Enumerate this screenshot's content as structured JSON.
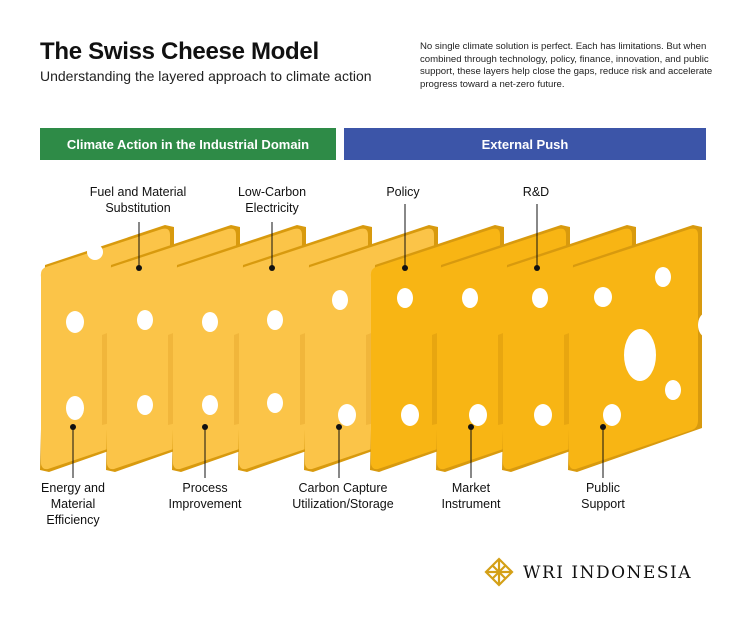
{
  "title": "The Swiss Cheese Model",
  "subtitle": "Understanding the layered approach to climate action",
  "intro": "No single climate solution is perfect. Each has limitations. But when combined through technology, policy, finance, innovation, and public support, these layers help close the gaps, reduce risk and accelerate progress toward a net-zero future.",
  "bands": {
    "industrial": "Climate Action in the Industrial Domain",
    "external": "External Push"
  },
  "labels_top": {
    "fuel": "Fuel and Material Substitution",
    "electricity": "Low-Carbon Electricity",
    "policy": "Policy",
    "rnd": "R&D"
  },
  "labels_bottom": {
    "efficiency": "Energy and Material Efficiency",
    "process": "Process Improvement",
    "ccus": "Carbon Capture Utilization/Storage",
    "market": "Market Instrument",
    "public": "Public Support"
  },
  "colors": {
    "industrial_band": "#2e8b47",
    "external_band": "#3c55a8",
    "industrial_slice": "#fbc448",
    "external_slice": "#f8b514",
    "slice_edge": "#d89a0e"
  },
  "logo": {
    "text": "WRI INDONESIA",
    "icon": "wri-lattice-icon"
  }
}
